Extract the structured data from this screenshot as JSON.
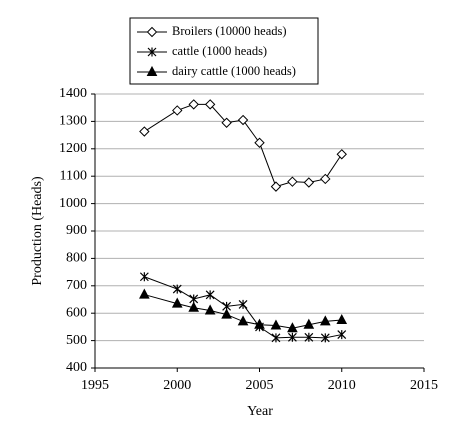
{
  "chart_data": {
    "type": "line",
    "xlabel": "Year",
    "ylabel": "Production (Heads)",
    "x": [
      1998,
      2000,
      2001,
      2002,
      2003,
      2004,
      2005,
      2006,
      2007,
      2008,
      2009,
      2010
    ],
    "series": [
      {
        "name": "Broilers (10000 heads)",
        "color": "#000000",
        "marker": "diamond",
        "values": [
          1263,
          1340,
          1362,
          1362,
          1295,
          1305,
          1222,
          1062,
          1080,
          1077,
          1090,
          1180
        ]
      },
      {
        "name": "cattle (1000 heads)",
        "color": "#000000",
        "marker": "asterisk",
        "values": [
          733,
          688,
          652,
          667,
          625,
          632,
          550,
          510,
          512,
          512,
          510,
          522
        ]
      },
      {
        "name": "dairy cattle (1000 heads)",
        "color": "#000000",
        "marker": "triangle",
        "values": [
          668,
          635,
          620,
          610,
          595,
          570,
          558,
          555,
          545,
          558,
          570,
          575
        ]
      }
    ],
    "xlim": [
      1995,
      2015
    ],
    "xticks": [
      1995,
      2000,
      2005,
      2010,
      2015
    ],
    "ylim": [
      400,
      1400
    ],
    "yticks": [
      400,
      500,
      600,
      700,
      800,
      900,
      1000,
      1100,
      1200,
      1300,
      1400
    ],
    "grid": true,
    "legend": "top"
  }
}
